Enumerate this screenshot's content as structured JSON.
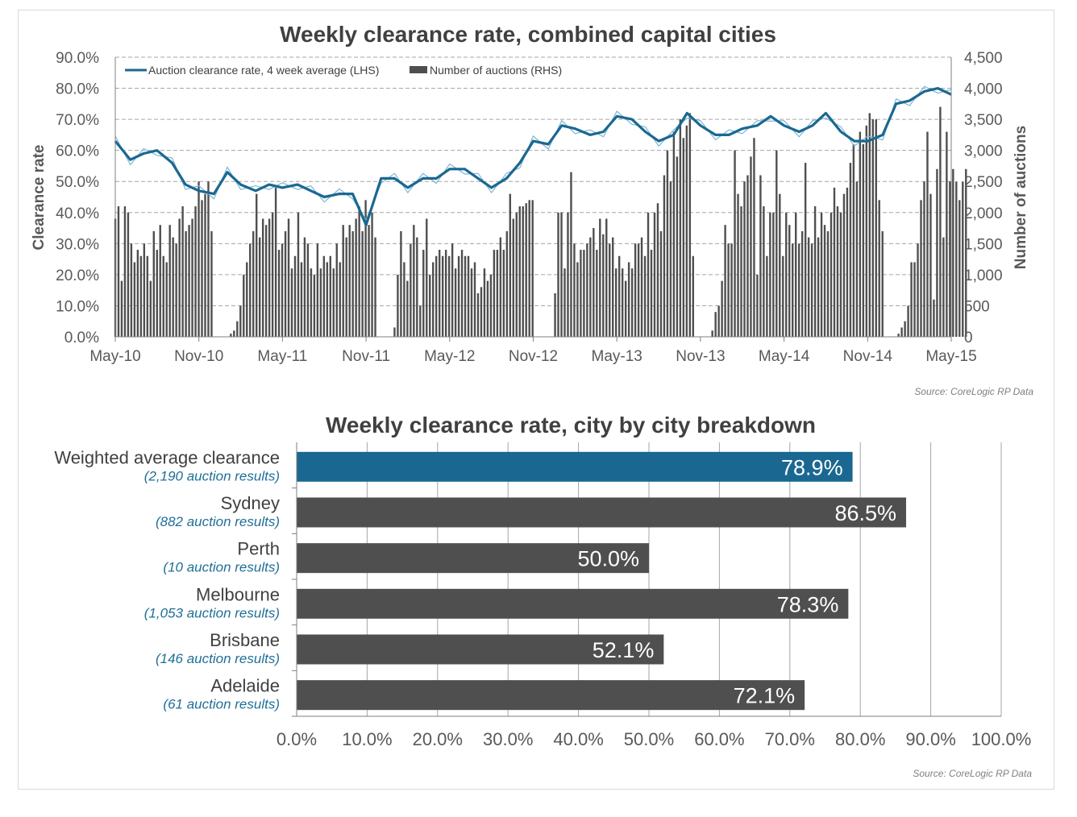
{
  "colors": {
    "line_avg": "#1a6891",
    "line_weekly": "#7eb6d4",
    "bar_dark": "#4f4f4f",
    "bar_highlight": "#1a6891",
    "grid": "#a6a6a6",
    "text": "#404040"
  },
  "chart_data": [
    {
      "type": "line",
      "title": "Weekly clearance rate, combined capital cities",
      "ylabel": "Clearance rate",
      "y2label": "Number of auctions",
      "ylim": [
        0,
        90
      ],
      "y2lim": [
        0,
        4500
      ],
      "x_tick_labels": [
        "May-10",
        "Nov-10",
        "May-11",
        "Nov-11",
        "May-12",
        "Nov-12",
        "May-13",
        "Nov-13",
        "May-14",
        "Nov-14",
        "May-15"
      ],
      "y_tick_labels": [
        "0.0%",
        "10.0%",
        "20.0%",
        "30.0%",
        "40.0%",
        "50.0%",
        "60.0%",
        "70.0%",
        "80.0%",
        "90.0%"
      ],
      "y2_tick_labels": [
        "0",
        "500",
        "1,000",
        "1,500",
        "2,000",
        "2,500",
        "3,000",
        "3,500",
        "4,000",
        "4,500"
      ],
      "grid": "horizontal dashed",
      "legend_position": "top-left",
      "source": "Source: CoreLogic  RP Data",
      "x_range_years": [
        2010.33,
        2015.33
      ],
      "series": [
        {
          "name": "Auction clearance rate, 4 week average (LHS)",
          "axis": "left",
          "x": [
            2010.33,
            2010.42,
            2010.5,
            2010.58,
            2010.67,
            2010.75,
            2010.83,
            2010.92,
            2011.0,
            2011.08,
            2011.17,
            2011.25,
            2011.33,
            2011.42,
            2011.5,
            2011.58,
            2011.67,
            2011.75,
            2011.83,
            2011.92,
            2012.0,
            2012.08,
            2012.17,
            2012.25,
            2012.33,
            2012.42,
            2012.5,
            2012.58,
            2012.67,
            2012.75,
            2012.83,
            2012.92,
            2013.0,
            2013.08,
            2013.17,
            2013.25,
            2013.33,
            2013.42,
            2013.5,
            2013.58,
            2013.67,
            2013.75,
            2013.83,
            2013.92,
            2014.0,
            2014.08,
            2014.17,
            2014.25,
            2014.33,
            2014.42,
            2014.5,
            2014.58,
            2014.67,
            2014.75,
            2014.83,
            2014.92,
            2015.0,
            2015.08,
            2015.17,
            2015.25,
            2015.33
          ],
          "values": [
            63,
            57,
            59,
            60,
            56,
            49,
            47,
            46,
            53,
            49,
            47,
            49,
            48,
            49,
            47,
            45,
            46,
            46,
            36,
            51,
            51,
            48,
            51,
            51,
            54,
            54,
            51,
            48,
            51,
            56,
            63,
            62,
            68,
            67,
            65,
            66,
            71,
            70,
            66,
            63,
            65,
            72,
            68,
            65,
            65,
            67,
            68,
            71,
            68,
            66,
            68,
            72,
            66,
            63,
            63,
            65,
            75,
            76,
            79,
            80,
            78
          ]
        },
        {
          "name": "Number of auctions (RHS)",
          "axis": "right",
          "type": "bar",
          "x_start": 2010.33,
          "x_step": 0.0192,
          "values": [
            1900,
            2100,
            900,
            2100,
            2000,
            1500,
            1200,
            1400,
            1300,
            1500,
            1300,
            900,
            1700,
            1400,
            1800,
            1300,
            1200,
            1800,
            1600,
            1500,
            1900,
            2100,
            1700,
            1800,
            1900,
            2100,
            2500,
            2200,
            2300,
            2500,
            1700,
            0,
            0,
            0,
            0,
            0,
            50,
            100,
            250,
            500,
            1000,
            1200,
            1500,
            1700,
            2300,
            1600,
            1900,
            1800,
            1900,
            2000,
            2400,
            1400,
            1500,
            1700,
            1900,
            1100,
            1300,
            2000,
            1200,
            1600,
            1500,
            1100,
            1000,
            1500,
            1100,
            1300,
            1200,
            1300,
            1100,
            1500,
            1200,
            1800,
            1600,
            1800,
            1700,
            1900,
            2100,
            1700,
            2200,
            1800,
            2000,
            1600,
            0,
            0,
            0,
            0,
            0,
            150,
            1000,
            1700,
            1200,
            900,
            1500,
            1800,
            1600,
            500,
            1400,
            1900,
            1000,
            1200,
            1300,
            1400,
            1300,
            1400,
            1300,
            1500,
            1100,
            1300,
            1400,
            1300,
            1300,
            1100,
            1200,
            700,
            800,
            1100,
            900,
            1000,
            1400,
            1400,
            1600,
            1400,
            1700,
            2300,
            1900,
            2000,
            2100,
            2100,
            2150,
            2200,
            2200,
            0,
            0,
            0,
            0,
            0,
            0,
            700,
            2000,
            2000,
            1100,
            2000,
            2650,
            1500,
            1200,
            1400,
            1400,
            1500,
            1600,
            1750,
            1400,
            1900,
            1650,
            1900,
            1500,
            1600,
            1100,
            1300,
            1100,
            900,
            1200,
            1100,
            1500,
            1500,
            1600,
            1300,
            2000,
            1400,
            2000,
            2150,
            1700,
            2600,
            3000,
            2500,
            3300,
            2900,
            3500,
            3200,
            3400,
            3600,
            1300,
            0,
            0,
            0,
            0,
            0,
            100,
            400,
            500,
            900,
            1800,
            1500,
            1500,
            3000,
            2300,
            2100,
            2500,
            2600,
            2900,
            3200,
            1000,
            2600,
            2100,
            1300,
            2000,
            2000,
            3000,
            2300,
            1300,
            2000,
            1800,
            1500,
            2000,
            1500,
            1700,
            2800,
            1600,
            1500,
            2100,
            1600,
            2000,
            1800,
            1700,
            2000,
            2400,
            2100,
            2000,
            2300,
            2400,
            2800,
            3100,
            2500,
            3300,
            3100,
            3400,
            3600,
            3500,
            3500,
            2200,
            1700,
            0,
            0,
            0,
            0,
            50,
            150,
            250,
            500,
            1200,
            1200,
            1500,
            2200,
            2500,
            3300,
            2300,
            600,
            2700,
            3700,
            1600,
            3300,
            2500,
            2700,
            2500,
            2200,
            2500,
            2700
          ]
        }
      ]
    },
    {
      "type": "bar",
      "orientation": "horizontal",
      "title": "Weekly clearance rate, city by city breakdown",
      "xlim": [
        0,
        100
      ],
      "x_tick_labels": [
        "0.0%",
        "10.0%",
        "20.0%",
        "30.0%",
        "40.0%",
        "50.0%",
        "60.0%",
        "70.0%",
        "80.0%",
        "90.0%",
        "100.0%"
      ],
      "grid": "vertical solid",
      "source": "Source: CoreLogic  RP Data",
      "categories": [
        {
          "name": "Weighted average clearance",
          "sub": "(2,190 auction results)",
          "value": 78.9,
          "label": "78.9%",
          "highlight": true
        },
        {
          "name": "Sydney",
          "sub": "(882 auction results)",
          "value": 86.5,
          "label": "86.5%",
          "highlight": false
        },
        {
          "name": "Perth",
          "sub": "(10 auction results)",
          "value": 50.0,
          "label": "50.0%",
          "highlight": false
        },
        {
          "name": "Melbourne",
          "sub": "(1,053 auction results)",
          "value": 78.3,
          "label": "78.3%",
          "highlight": false
        },
        {
          "name": "Brisbane",
          "sub": "(146 auction results)",
          "value": 52.1,
          "label": "52.1%",
          "highlight": false
        },
        {
          "name": "Adelaide",
          "sub": "(61 auction results)",
          "value": 72.1,
          "label": "72.1%",
          "highlight": false
        }
      ]
    }
  ]
}
